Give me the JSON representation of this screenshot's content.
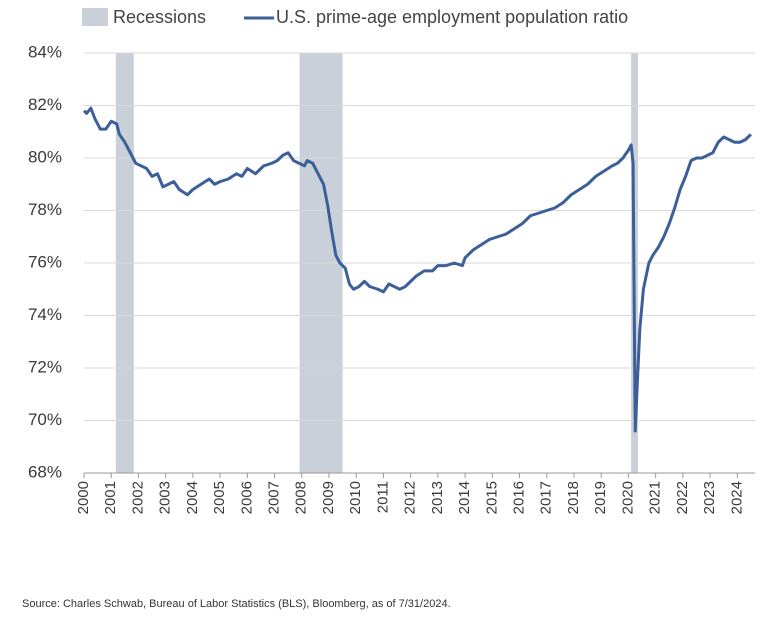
{
  "chart_data": {
    "type": "line",
    "source": "Source: Charles Schwab, Bureau of Labor Statistics (BLS), Bloomberg, as of 7/31/2024.",
    "recessions": {
      "name": "Recessions",
      "color": "#c9d0d9",
      "spans": [
        [
          2001.17,
          2001.83
        ],
        [
          2007.92,
          2009.5
        ],
        [
          2020.1,
          2020.35
        ]
      ]
    },
    "x": [
      2000.0,
      2000.1,
      2000.25,
      2000.4,
      2000.6,
      2000.8,
      2001.0,
      2001.2,
      2001.3,
      2001.5,
      2001.7,
      2001.9,
      2002.1,
      2002.3,
      2002.5,
      2002.7,
      2002.9,
      2003.1,
      2003.3,
      2003.5,
      2003.8,
      2004.0,
      2004.3,
      2004.6,
      2004.8,
      2005.0,
      2005.3,
      2005.6,
      2005.8,
      2006.0,
      2006.3,
      2006.6,
      2006.9,
      2007.1,
      2007.3,
      2007.5,
      2007.7,
      2007.9,
      2008.1,
      2008.2,
      2008.4,
      2008.6,
      2008.8,
      2008.95,
      2009.1,
      2009.25,
      2009.4,
      2009.6,
      2009.75,
      2009.9,
      2010.1,
      2010.3,
      2010.5,
      2010.8,
      2011.0,
      2011.2,
      2011.4,
      2011.6,
      2011.8,
      2012.0,
      2012.2,
      2012.5,
      2012.8,
      2013.0,
      2013.3,
      2013.6,
      2013.9,
      2014.0,
      2014.3,
      2014.6,
      2014.9,
      2015.2,
      2015.5,
      2015.8,
      2016.1,
      2016.4,
      2016.7,
      2017.0,
      2017.3,
      2017.6,
      2017.9,
      2018.2,
      2018.5,
      2018.8,
      2019.1,
      2019.4,
      2019.6,
      2019.8,
      2020.0,
      2020.1,
      2020.17,
      2020.25,
      2020.33,
      2020.42,
      2020.55,
      2020.75,
      2020.9,
      2021.1,
      2021.3,
      2021.5,
      2021.7,
      2021.9,
      2022.1,
      2022.3,
      2022.5,
      2022.7,
      2022.9,
      2023.1,
      2023.3,
      2023.5,
      2023.7,
      2023.9,
      2024.1,
      2024.3,
      2024.5
    ],
    "series": [
      {
        "name": "U.S. prime-age employment population ratio",
        "color": "#3d5f99",
        "values": [
          81.8,
          81.7,
          81.9,
          81.5,
          81.1,
          81.1,
          81.4,
          81.3,
          80.9,
          80.6,
          80.2,
          79.8,
          79.7,
          79.6,
          79.3,
          79.4,
          78.9,
          79.0,
          79.1,
          78.8,
          78.6,
          78.8,
          79.0,
          79.2,
          79.0,
          79.1,
          79.2,
          79.4,
          79.3,
          79.6,
          79.4,
          79.7,
          79.8,
          79.9,
          80.1,
          80.2,
          79.9,
          79.8,
          79.7,
          79.9,
          79.8,
          79.4,
          79.0,
          78.2,
          77.2,
          76.3,
          76.0,
          75.8,
          75.2,
          75.0,
          75.1,
          75.3,
          75.1,
          75.0,
          74.9,
          75.2,
          75.1,
          75.0,
          75.1,
          75.3,
          75.5,
          75.7,
          75.7,
          75.9,
          75.9,
          76.0,
          75.9,
          76.2,
          76.5,
          76.7,
          76.9,
          77.0,
          77.1,
          77.3,
          77.5,
          77.8,
          77.9,
          78.0,
          78.1,
          78.3,
          78.6,
          78.8,
          79.0,
          79.3,
          79.5,
          79.7,
          79.8,
          80.0,
          80.3,
          80.5,
          79.8,
          69.6,
          71.5,
          73.5,
          75.0,
          76.0,
          76.3,
          76.6,
          77.0,
          77.5,
          78.1,
          78.8,
          79.3,
          79.9,
          80.0,
          80.0,
          80.1,
          80.2,
          80.6,
          80.8,
          80.7,
          80.6,
          80.6,
          80.7,
          80.9
        ]
      }
    ],
    "xlim": [
      2000,
      2024.65
    ],
    "xticks": [
      2000,
      2001,
      2002,
      2003,
      2004,
      2005,
      2006,
      2007,
      2008,
      2009,
      2010,
      2011,
      2012,
      2013,
      2014,
      2015,
      2016,
      2017,
      2018,
      2019,
      2020,
      2021,
      2022,
      2023,
      2024
    ],
    "ylim": [
      68,
      84
    ],
    "yticks": [
      {
        "value": 68,
        "label": "68%"
      },
      {
        "value": 70,
        "label": "70%"
      },
      {
        "value": 72,
        "label": "72%"
      },
      {
        "value": 74,
        "label": "74%"
      },
      {
        "value": 76,
        "label": "76%"
      },
      {
        "value": 78,
        "label": "78%"
      },
      {
        "value": 80,
        "label": "80%"
      },
      {
        "value": 82,
        "label": "82%"
      },
      {
        "value": 84,
        "label": "84%"
      }
    ],
    "grid": true
  }
}
